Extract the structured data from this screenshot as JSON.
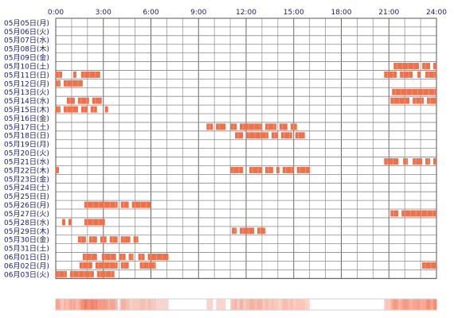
{
  "chart_data": {
    "type": "heatmap",
    "title": "",
    "xlabel": "",
    "ylabel": "",
    "x_ticks": [
      "0:00",
      "3:00",
      "6:00",
      "9:00",
      "12:00",
      "15:00",
      "18:00",
      "21:00",
      "24:00"
    ],
    "xlim": [
      0,
      24
    ],
    "grid": true,
    "bar_color": "#f0704a",
    "rows": [
      {
        "label": "05月05日(月)",
        "spans": []
      },
      {
        "label": "05月06日(火)",
        "spans": []
      },
      {
        "label": "05月07日(水)",
        "spans": []
      },
      {
        "label": "05月08日(木)",
        "spans": []
      },
      {
        "label": "05月09日(金)",
        "spans": []
      },
      {
        "label": "05月10日(土)",
        "spans": [
          [
            21.3,
            22.9
          ],
          [
            23.1,
            23.6
          ],
          [
            23.8,
            24.0
          ]
        ]
      },
      {
        "label": "05月11日(日)",
        "spans": [
          [
            0.0,
            0.4
          ],
          [
            1.1,
            1.3
          ],
          [
            1.6,
            2.8
          ],
          [
            20.7,
            21.5
          ],
          [
            21.7,
            22.5
          ],
          [
            22.8,
            23.0
          ],
          [
            23.3,
            24.0
          ]
        ]
      },
      {
        "label": "05月12日(月)",
        "spans": [
          [
            0.0,
            0.3
          ],
          [
            0.5,
            1.7
          ]
        ]
      },
      {
        "label": "05月13日(火)",
        "spans": [
          [
            21.2,
            24.0
          ]
        ]
      },
      {
        "label": "05月14日(水)",
        "spans": [
          [
            0.7,
            1.2
          ],
          [
            1.4,
            2.1
          ],
          [
            2.3,
            2.9
          ],
          [
            21.1,
            22.3
          ],
          [
            22.5,
            23.2
          ],
          [
            23.4,
            24.0
          ]
        ]
      },
      {
        "label": "05月15日(木)",
        "spans": [
          [
            0.0,
            0.3
          ],
          [
            0.5,
            1.4
          ],
          [
            1.6,
            2.0
          ],
          [
            2.2,
            2.6
          ],
          [
            3.1,
            3.3
          ]
        ]
      },
      {
        "label": "05月16日(金)",
        "spans": []
      },
      {
        "label": "05月17日(土)",
        "spans": [
          [
            9.5,
            9.9
          ],
          [
            10.1,
            10.7
          ],
          [
            11.0,
            11.4
          ],
          [
            11.6,
            13.0
          ],
          [
            13.2,
            13.9
          ],
          [
            14.1,
            14.6
          ],
          [
            14.8,
            15.2
          ]
        ]
      },
      {
        "label": "05月18日(日)",
        "spans": [
          [
            11.3,
            11.8
          ],
          [
            12.0,
            13.4
          ],
          [
            13.6,
            14.0
          ],
          [
            14.2,
            14.9
          ],
          [
            15.1,
            15.7
          ]
        ]
      },
      {
        "label": "05月19日(月)",
        "spans": []
      },
      {
        "label": "05月20日(火)",
        "spans": []
      },
      {
        "label": "05月21日(水)",
        "spans": [
          [
            20.7,
            21.6
          ],
          [
            21.9,
            22.2
          ],
          [
            22.5,
            23.1
          ],
          [
            23.3,
            23.6
          ],
          [
            23.8,
            24.0
          ]
        ]
      },
      {
        "label": "05月22日(木)",
        "spans": [
          [
            0.0,
            0.2
          ],
          [
            11.0,
            11.8
          ],
          [
            12.2,
            13.0
          ],
          [
            13.2,
            13.7
          ],
          [
            13.9,
            14.1
          ],
          [
            14.3,
            15.0
          ],
          [
            15.2,
            16.0
          ]
        ]
      },
      {
        "label": "05月23日(金)",
        "spans": []
      },
      {
        "label": "05月24日(土)",
        "spans": []
      },
      {
        "label": "05月25日(日)",
        "spans": []
      },
      {
        "label": "05月26日(月)",
        "spans": [
          [
            1.8,
            3.9
          ],
          [
            4.1,
            4.6
          ],
          [
            4.8,
            6.0
          ]
        ]
      },
      {
        "label": "05月27日(火)",
        "spans": [
          [
            21.1,
            21.6
          ],
          [
            21.8,
            24.0
          ]
        ]
      },
      {
        "label": "05月28日(水)",
        "spans": [
          [
            0.4,
            0.6
          ],
          [
            0.8,
            1.0
          ],
          [
            1.8,
            3.1
          ]
        ]
      },
      {
        "label": "05月29日(木)",
        "spans": [
          [
            11.1,
            11.4
          ],
          [
            11.6,
            12.5
          ],
          [
            12.7,
            13.2
          ]
        ]
      },
      {
        "label": "05月30日(金)",
        "spans": [
          [
            1.4,
            1.9
          ],
          [
            2.1,
            2.6
          ],
          [
            2.8,
            3.2
          ],
          [
            3.4,
            3.9
          ],
          [
            4.1,
            4.7
          ],
          [
            4.9,
            5.2
          ]
        ]
      },
      {
        "label": "05月31日(土)",
        "spans": []
      },
      {
        "label": "06月01日(日)",
        "spans": [
          [
            1.7,
            2.6
          ],
          [
            2.9,
            3.8
          ],
          [
            4.0,
            4.4
          ],
          [
            4.6,
            4.9
          ],
          [
            5.2,
            5.6
          ],
          [
            5.8,
            7.1
          ]
        ]
      },
      {
        "label": "06月02日(月)",
        "spans": [
          [
            1.5,
            2.3
          ],
          [
            2.5,
            3.9
          ],
          [
            4.1,
            4.6
          ],
          [
            5.3,
            6.3
          ],
          [
            23.1,
            24.0
          ]
        ]
      },
      {
        "label": "06月03日(火)",
        "spans": [
          [
            0.0,
            0.7
          ],
          [
            0.9,
            2.4
          ],
          [
            2.6,
            3.7
          ]
        ]
      }
    ]
  }
}
